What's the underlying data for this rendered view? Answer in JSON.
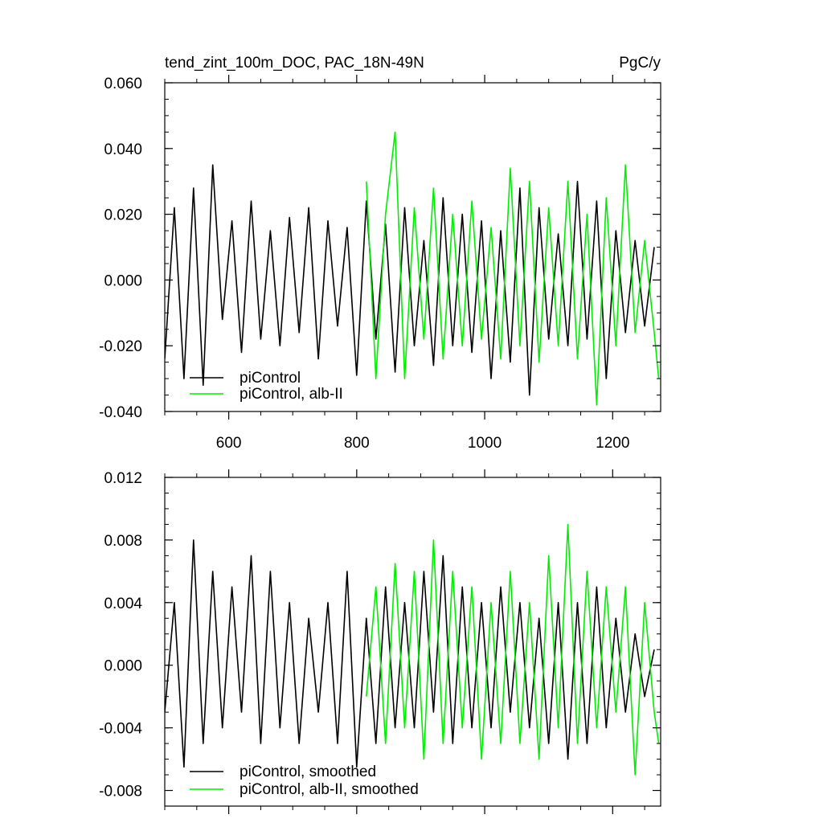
{
  "header": {
    "left_title": "tend_zint_100m_DOC, PAC_18N-49N",
    "right_title": "PgC/y"
  },
  "colors": {
    "picontrol": "#000000",
    "alb_ii": "#00ee00",
    "axis": "#000000",
    "background": "#ffffff"
  },
  "chart_data": [
    {
      "type": "line",
      "title": "tend_zint_100m_DOC, PAC_18N-49N",
      "units": "PgC/y",
      "xlim": [
        500,
        1275
      ],
      "ylim": [
        -0.04,
        0.06
      ],
      "xticks": [
        600,
        800,
        1000,
        1200
      ],
      "xtick_labels": [
        "600",
        "800",
        "1000",
        "1200"
      ],
      "yticks": [
        -0.04,
        -0.02,
        0.0,
        0.02,
        0.04,
        0.06
      ],
      "ytick_labels": [
        "-0.040",
        "-0.020",
        "0.000",
        "0.020",
        "0.040",
        "0.060"
      ],
      "grid": false,
      "legend_position": "bottom-left",
      "series": [
        {
          "name": "piControl",
          "color": "#000000",
          "x": [
            500,
            515,
            530,
            545,
            560,
            575,
            590,
            605,
            620,
            635,
            650,
            665,
            680,
            695,
            710,
            725,
            740,
            755,
            770,
            785,
            800,
            815,
            830,
            845,
            860,
            875,
            890,
            905,
            920,
            935,
            950,
            965,
            980,
            995,
            1010,
            1025,
            1040,
            1055,
            1070,
            1085,
            1100,
            1115,
            1130,
            1145,
            1160,
            1175,
            1190,
            1205,
            1220,
            1235,
            1250,
            1265
          ],
          "y": [
            -0.024,
            0.022,
            -0.03,
            0.028,
            -0.032,
            0.035,
            -0.012,
            0.018,
            -0.022,
            0.024,
            -0.018,
            0.015,
            -0.02,
            0.019,
            -0.016,
            0.022,
            -0.024,
            0.018,
            -0.014,
            0.016,
            -0.029,
            0.024,
            -0.018,
            0.017,
            -0.028,
            0.022,
            -0.02,
            0.012,
            -0.026,
            0.025,
            -0.02,
            0.02,
            -0.022,
            0.018,
            -0.03,
            0.015,
            -0.025,
            0.028,
            -0.035,
            0.022,
            -0.018,
            0.014,
            -0.02,
            0.03,
            -0.018,
            0.024,
            -0.03,
            0.015,
            -0.016,
            0.012,
            -0.014,
            0.01
          ]
        },
        {
          "name": "piControl, alb-II",
          "color": "#00ee00",
          "x": [
            815,
            830,
            845,
            860,
            875,
            890,
            905,
            920,
            935,
            950,
            965,
            980,
            995,
            1010,
            1025,
            1040,
            1055,
            1070,
            1085,
            1100,
            1115,
            1130,
            1145,
            1160,
            1175,
            1190,
            1205,
            1220,
            1235,
            1250,
            1265,
            1272
          ],
          "y": [
            0.03,
            -0.03,
            0.02,
            0.045,
            -0.03,
            0.022,
            -0.018,
            0.028,
            -0.024,
            0.02,
            -0.02,
            0.024,
            -0.018,
            0.016,
            -0.024,
            0.034,
            -0.02,
            0.03,
            -0.025,
            0.022,
            -0.02,
            0.03,
            -0.024,
            0.02,
            -0.038,
            0.025,
            -0.02,
            0.035,
            -0.016,
            0.012,
            -0.016,
            -0.03
          ]
        }
      ]
    },
    {
      "type": "line",
      "xlim": [
        500,
        1275
      ],
      "ylim": [
        -0.009,
        0.012
      ],
      "xticks": [
        600,
        800,
        1000,
        1200
      ],
      "yticks": [
        -0.008,
        -0.004,
        0.0,
        0.004,
        0.008,
        0.012
      ],
      "ytick_labels": [
        "-0.008",
        "-0.004",
        "0.000",
        "0.004",
        "0.008",
        "0.012"
      ],
      "grid": false,
      "legend_position": "bottom-left",
      "series": [
        {
          "name": "piControl, smoothed",
          "color": "#000000",
          "x": [
            500,
            515,
            530,
            545,
            560,
            575,
            590,
            605,
            620,
            635,
            650,
            665,
            680,
            695,
            710,
            725,
            740,
            755,
            770,
            785,
            800,
            815,
            830,
            845,
            860,
            875,
            890,
            905,
            920,
            935,
            950,
            965,
            980,
            995,
            1010,
            1025,
            1040,
            1055,
            1070,
            1085,
            1100,
            1115,
            1130,
            1145,
            1160,
            1175,
            1190,
            1205,
            1220,
            1235,
            1250,
            1265
          ],
          "y": [
            -0.003,
            0.004,
            -0.0065,
            0.008,
            -0.005,
            0.006,
            -0.004,
            0.005,
            -0.003,
            0.007,
            -0.005,
            0.006,
            -0.004,
            0.004,
            -0.005,
            0.003,
            -0.003,
            0.004,
            -0.005,
            0.006,
            -0.0065,
            0.003,
            -0.005,
            0.005,
            -0.004,
            0.004,
            -0.004,
            0.006,
            -0.003,
            0.007,
            -0.005,
            0.005,
            -0.004,
            0.004,
            -0.004,
            0.005,
            -0.003,
            0.004,
            -0.004,
            0.003,
            -0.005,
            0.004,
            -0.006,
            0.004,
            -0.005,
            0.005,
            -0.004,
            0.003,
            -0.003,
            0.002,
            -0.002,
            0.001
          ]
        },
        {
          "name": "piControl, alb-II, smoothed",
          "color": "#00ee00",
          "x": [
            815,
            830,
            845,
            860,
            875,
            890,
            905,
            920,
            935,
            950,
            965,
            980,
            995,
            1010,
            1025,
            1040,
            1055,
            1070,
            1085,
            1100,
            1115,
            1130,
            1145,
            1160,
            1175,
            1190,
            1205,
            1220,
            1235,
            1250,
            1265,
            1272
          ],
          "y": [
            -0.002,
            0.005,
            -0.005,
            0.0065,
            -0.004,
            0.006,
            -0.006,
            0.008,
            -0.005,
            0.006,
            -0.004,
            0.005,
            -0.006,
            0.004,
            -0.005,
            0.006,
            -0.005,
            0.004,
            -0.006,
            0.007,
            -0.004,
            0.009,
            -0.005,
            0.006,
            -0.004,
            0.005,
            -0.003,
            0.005,
            -0.007,
            0.004,
            -0.003,
            -0.005
          ]
        }
      ]
    }
  ]
}
